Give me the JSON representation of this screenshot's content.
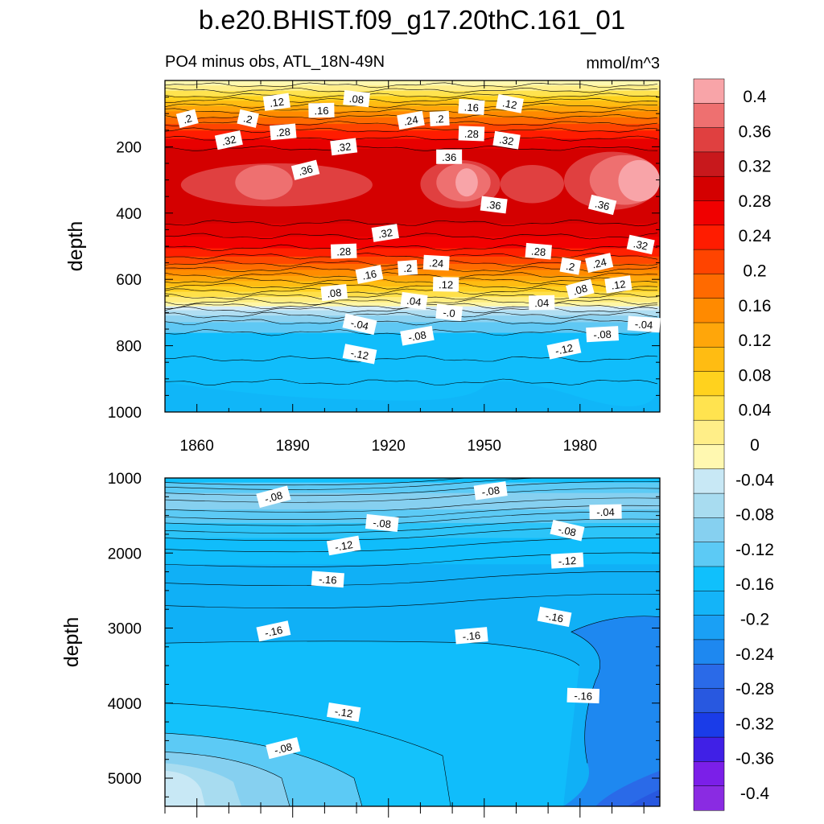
{
  "chart_data": {
    "type": "contour",
    "title": "b.e20.BHIST.f09_g17.20thC.161_01",
    "subtitle_left": "PO4 minus obs, ATL_18N-49N",
    "units": "mmol/m^3",
    "colorbar": {
      "levels": [
        -0.4,
        -0.36,
        -0.32,
        -0.28,
        -0.24,
        -0.2,
        -0.16,
        -0.12,
        -0.08,
        -0.04,
        0,
        0.04,
        0.08,
        0.12,
        0.16,
        0.2,
        0.24,
        0.28,
        0.32,
        0.36,
        0.4
      ],
      "labels": [
        "-0.4",
        "-0.36",
        "-0.32",
        "-0.28",
        "-0.24",
        "-0.2",
        "-0.16",
        "-0.12",
        "-0.08",
        "-0.04",
        "0",
        "0.04",
        "0.08",
        "0.12",
        "0.16",
        "0.2",
        "0.24",
        "0.28",
        "0.32",
        "0.36",
        "0.4"
      ],
      "colors": [
        "#8a2be2",
        "#7b1fe8",
        "#4020e6",
        "#1a3ce8",
        "#2858e0",
        "#2a6ae8",
        "#1e88f0",
        "#1aa0f5",
        "#14b4f8",
        "#10c0fc",
        "#5ccaf5",
        "#86d0f0",
        "#a8dcf0",
        "#c8e8f5",
        "#fff8b0",
        "#ffee88",
        "#ffe34f",
        "#ffd21e",
        "#ffbc12",
        "#ffa60a",
        "#ff8a00",
        "#ff6a00",
        "#ff4400",
        "#ff1c00",
        "#f00000",
        "#d40000",
        "#c8181c",
        "#e04040",
        "#ee7070",
        "#f8a4a8"
      ]
    },
    "top_panel": {
      "xlabel_ticks": [
        "1860",
        "1890",
        "1920",
        "1950",
        "1980"
      ],
      "xlim": [
        1850,
        2005
      ],
      "ylabel": "depth",
      "yticks": [
        "200",
        "400",
        "600",
        "800",
        "1000"
      ],
      "ylim": [
        0,
        1000
      ],
      "contour_labels": [
        {
          "text": ".2",
          "x": 1857,
          "y": 115
        },
        {
          "text": ".12",
          "x": 1885,
          "y": 65
        },
        {
          "text": ".16",
          "x": 1899,
          "y": 90
        },
        {
          "text": ".08",
          "x": 1910,
          "y": 55
        },
        {
          "text": ".2",
          "x": 1876,
          "y": 115
        },
        {
          "text": ".24",
          "x": 1927,
          "y": 120
        },
        {
          "text": ".2",
          "x": 1936,
          "y": 115
        },
        {
          "text": ".16",
          "x": 1946,
          "y": 80
        },
        {
          "text": ".12",
          "x": 1958,
          "y": 70
        },
        {
          "text": ".32",
          "x": 1870,
          "y": 180
        },
        {
          "text": ".28",
          "x": 1887,
          "y": 155
        },
        {
          "text": ".28",
          "x": 1946,
          "y": 160
        },
        {
          "text": ".32",
          "x": 1957,
          "y": 180
        },
        {
          "text": ".36",
          "x": 1894,
          "y": 270
        },
        {
          "text": ".32",
          "x": 1906,
          "y": 200
        },
        {
          "text": ".36",
          "x": 1939,
          "y": 230
        },
        {
          "text": ".36",
          "x": 1953,
          "y": 375
        },
        {
          "text": ".36",
          "x": 1987,
          "y": 375
        },
        {
          "text": ".32",
          "x": 1919,
          "y": 460
        },
        {
          "text": ".28",
          "x": 1906,
          "y": 515
        },
        {
          "text": ".28",
          "x": 1967,
          "y": 515
        },
        {
          "text": ".32",
          "x": 1999,
          "y": 495
        },
        {
          "text": ".16",
          "x": 1914,
          "y": 585
        },
        {
          "text": ".2",
          "x": 1926,
          "y": 565
        },
        {
          "text": ".24",
          "x": 1935,
          "y": 550
        },
        {
          "text": ".2",
          "x": 1977,
          "y": 560
        },
        {
          "text": ".24",
          "x": 1986,
          "y": 550
        },
        {
          "text": ".08",
          "x": 1903,
          "y": 640
        },
        {
          "text": ".12",
          "x": 1938,
          "y": 615
        },
        {
          "text": ".04",
          "x": 1928,
          "y": 665
        },
        {
          "text": ".08",
          "x": 1980,
          "y": 630
        },
        {
          "text": ".12",
          "x": 1992,
          "y": 615
        },
        {
          "text": ".04",
          "x": 1968,
          "y": 670
        },
        {
          "text": "-.0",
          "x": 1939,
          "y": 700
        },
        {
          "text": "-.04",
          "x": 1911,
          "y": 735
        },
        {
          "text": "-.08",
          "x": 1929,
          "y": 770
        },
        {
          "text": "-.08",
          "x": 1987,
          "y": 765
        },
        {
          "text": "-.04",
          "x": 2000,
          "y": 735
        },
        {
          "text": "-.12",
          "x": 1911,
          "y": 825
        },
        {
          "text": "-.12",
          "x": 1975,
          "y": 810
        }
      ]
    },
    "bottom_panel": {
      "ylabel": "depth",
      "yticks": [
        "1000",
        "2000",
        "3000",
        "4000",
        "5000"
      ],
      "ylim": [
        1000,
        5375
      ],
      "xlim": [
        1850,
        2005
      ],
      "contour_labels": [
        {
          "text": "-.08",
          "x": 1884,
          "y": 1250
        },
        {
          "text": "-.08",
          "x": 1952,
          "y": 1170
        },
        {
          "text": "-.04",
          "x": 1988,
          "y": 1450
        },
        {
          "text": "-.08",
          "x": 1918,
          "y": 1600
        },
        {
          "text": "-.08",
          "x": 1976,
          "y": 1700
        },
        {
          "text": "-.12",
          "x": 1906,
          "y": 1900
        },
        {
          "text": "-.12",
          "x": 1976,
          "y": 2100
        },
        {
          "text": "-.16",
          "x": 1901,
          "y": 2350
        },
        {
          "text": "-.16",
          "x": 1972,
          "y": 2850
        },
        {
          "text": "-.16",
          "x": 1884,
          "y": 3040
        },
        {
          "text": "-.16",
          "x": 1946,
          "y": 3100
        },
        {
          "text": "-.16",
          "x": 1981,
          "y": 3900
        },
        {
          "text": "-.12",
          "x": 1906,
          "y": 4120
        },
        {
          "text": "-.08",
          "x": 1887,
          "y": 4600
        }
      ]
    }
  }
}
